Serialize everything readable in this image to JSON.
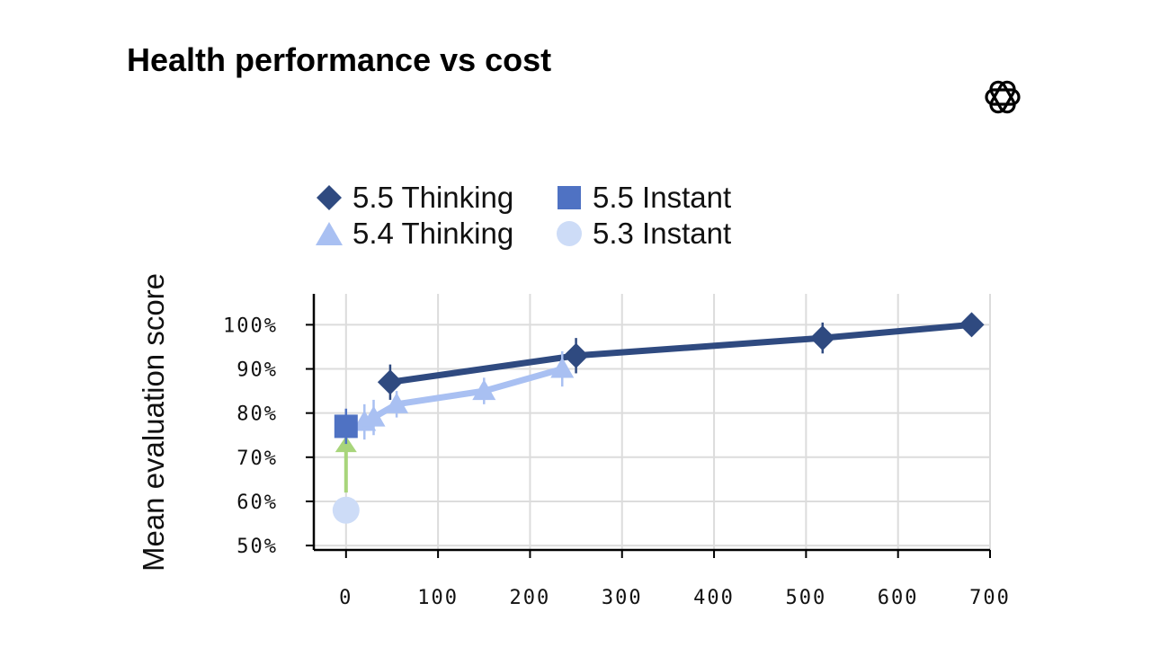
{
  "title": "Health performance vs cost",
  "logo_icon": "openai-logo-icon",
  "legend": [
    {
      "label": "5.5 Thinking",
      "marker": "diamond",
      "color": "#2f4a80"
    },
    {
      "label": "5.5 Instant",
      "marker": "square",
      "color": "#4f72c3"
    },
    {
      "label": "5.4 Thinking",
      "marker": "triangle",
      "color": "#a9c0f2"
    },
    {
      "label": "5.3 Instant",
      "marker": "circle",
      "color": "#cddcf7"
    }
  ],
  "chart_data": {
    "type": "line",
    "title": "Health performance vs cost",
    "xlabel": "",
    "ylabel": "Mean evaluation score",
    "xlim": [
      -35,
      700
    ],
    "ylim": [
      49,
      107
    ],
    "xticks": [
      "0",
      "100",
      "200",
      "300",
      "400",
      "500",
      "600",
      "700"
    ],
    "yticks": [
      "50%",
      "60%",
      "70%",
      "80%",
      "90%",
      "100%"
    ],
    "grid": true,
    "legend_position": "top",
    "series": [
      {
        "name": "5.5 Thinking",
        "marker": "diamond",
        "color": "#2f4a80",
        "line": true,
        "x": [
          48,
          250,
          518,
          680
        ],
        "y": [
          87,
          93,
          97,
          100
        ],
        "error": [
          4,
          4,
          3.5,
          2
        ]
      },
      {
        "name": "5.4 Thinking",
        "marker": "triangle",
        "color": "#a9c0f2",
        "line": true,
        "x": [
          20,
          30,
          55,
          150,
          235
        ],
        "y": [
          78,
          79,
          82,
          85,
          90
        ],
        "error": [
          4,
          4,
          3,
          3,
          4
        ]
      },
      {
        "name": "5.5 Instant",
        "marker": "square",
        "color": "#4f72c3",
        "line": false,
        "x": [
          0
        ],
        "y": [
          77
        ],
        "error": [
          4
        ]
      },
      {
        "name": "5.3 Instant",
        "marker": "circle",
        "color": "#cddcf7",
        "line": false,
        "x": [
          0
        ],
        "y": [
          58
        ],
        "error": [
          0
        ]
      }
    ],
    "annotations": [
      {
        "type": "arrow",
        "from": [
          0,
          62
        ],
        "to": [
          0,
          74
        ],
        "color": "#a8d57b"
      }
    ]
  }
}
